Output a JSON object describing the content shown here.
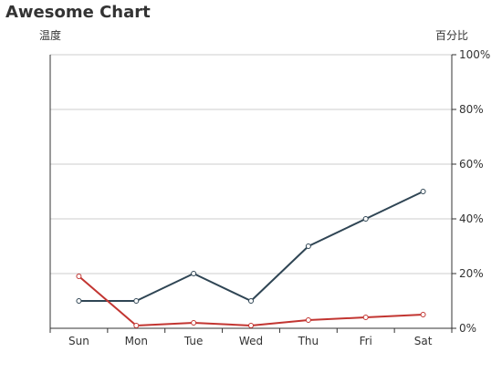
{
  "chart_data": {
    "type": "line",
    "title": "Awesome Chart",
    "categories": [
      "Sun",
      "Mon",
      "Tue",
      "Wed",
      "Thu",
      "Fri",
      "Sat"
    ],
    "ylabel_left": "温度",
    "ylabel_right": "百分比",
    "y_right_ticks": [
      "0%",
      "20%",
      "40%",
      "60%",
      "80%",
      "100%"
    ],
    "ylim_percent": [
      0,
      100
    ],
    "grid": true,
    "series": [
      {
        "color": "#2f4554",
        "values_percent": [
          10,
          10,
          20,
          10,
          30,
          40,
          50
        ]
      },
      {
        "color": "#c23531",
        "values_percent": [
          19,
          1,
          2,
          1,
          3,
          4,
          5
        ]
      }
    ]
  }
}
